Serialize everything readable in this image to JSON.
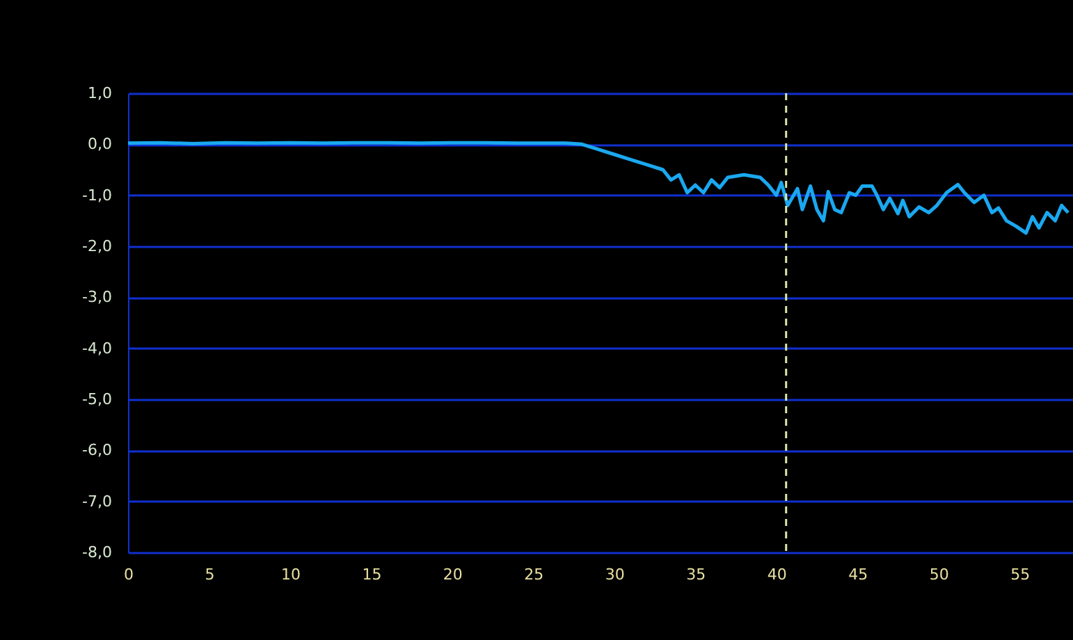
{
  "chart_data": {
    "type": "line",
    "x": [
      0,
      2,
      4,
      6,
      8,
      10,
      12,
      14,
      16,
      18,
      20,
      22,
      24,
      26,
      27,
      28,
      29,
      30,
      31,
      32,
      33,
      33.5,
      34,
      34.5,
      35,
      35.5,
      36,
      36.5,
      37,
      38,
      39,
      39.5,
      40,
      40.3,
      40.7,
      41.3,
      41.6,
      42.1,
      42.5,
      42.9,
      43.2,
      43.6,
      44.0,
      44.5,
      44.9,
      45.3,
      45.9,
      46.2,
      46.6,
      47.0,
      47.5,
      47.8,
      48.2,
      48.8,
      49.4,
      49.9,
      50.5,
      51.2,
      51.6,
      52.2,
      52.8,
      53.3,
      53.7,
      54.2,
      54.8,
      55.4,
      55.8,
      56.2,
      56.7,
      57.2,
      57.6,
      58.0
    ],
    "series": [
      {
        "color": "#1aa8f0",
        "values": [
          0.02,
          0.03,
          0.01,
          0.03,
          0.02,
          0.03,
          0.02,
          0.03,
          0.03,
          0.02,
          0.03,
          0.03,
          0.02,
          0.02,
          0.02,
          0,
          -0.1,
          -0.2,
          -0.3,
          -0.4,
          -0.5,
          -0.7,
          -0.6,
          -0.95,
          -0.8,
          -0.95,
          -0.7,
          -0.85,
          -0.65,
          -0.6,
          -0.65,
          -0.8,
          -1.0,
          -0.75,
          -1.2,
          -0.87,
          -1.28,
          -0.82,
          -1.28,
          -1.5,
          -0.93,
          -1.28,
          -1.34,
          -0.95,
          -1.0,
          -0.82,
          -0.82,
          -1.0,
          -1.28,
          -1.06,
          -1.36,
          -1.1,
          -1.42,
          -1.23,
          -1.34,
          -1.2,
          -0.95,
          -0.79,
          -0.95,
          -1.14,
          -1.0,
          -1.34,
          -1.25,
          -1.5,
          -1.61,
          -1.74,
          -1.42,
          -1.64,
          -1.34,
          -1.5,
          -1.2,
          -1.34
        ]
      }
    ],
    "xlim": [
      0,
      58.3
    ],
    "ylim": [
      -8,
      1
    ],
    "xticks": [
      0,
      5,
      10,
      15,
      20,
      25,
      30,
      35,
      40,
      45,
      50,
      55
    ],
    "yticks": [
      {
        "value": 1,
        "label": "1,0"
      },
      {
        "value": 0,
        "label": "0,0"
      },
      {
        "value": -1,
        "label": "-1,0"
      },
      {
        "value": -2,
        "label": "-2,0"
      },
      {
        "value": -3,
        "label": "-3,0"
      },
      {
        "value": -4,
        "label": "-4,0"
      },
      {
        "value": -5,
        "label": "-5,0"
      },
      {
        "value": -6,
        "label": "-6,0"
      },
      {
        "value": -7,
        "label": "-7,0"
      },
      {
        "value": -8,
        "label": "-8,0"
      }
    ],
    "grid": "y",
    "marker": "none",
    "line_style": "solid",
    "ref_lines": [
      {
        "axis": "x",
        "value": 40.6,
        "color": "#d8e8a8",
        "line_style": "dashed"
      }
    ]
  }
}
